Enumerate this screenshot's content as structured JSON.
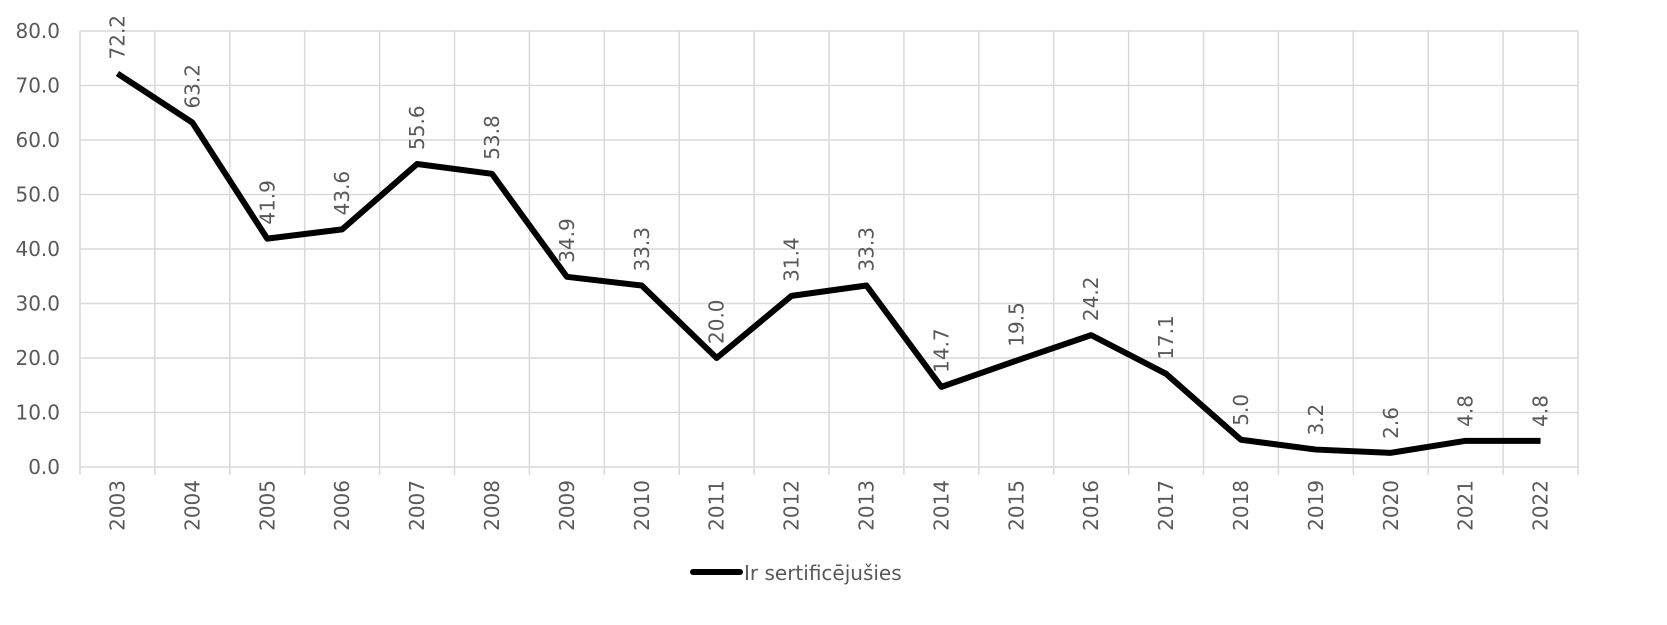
{
  "chart_data": {
    "type": "line",
    "categories": [
      "2003",
      "2004",
      "2005",
      "2006",
      "2007",
      "2008",
      "2009",
      "2010",
      "2011",
      "2012",
      "2013",
      "2014",
      "2015",
      "2016",
      "2017",
      "2018",
      "2019",
      "2020",
      "2021",
      "2022"
    ],
    "series": [
      {
        "name": "Ir sertificējušies",
        "color": "#000000",
        "values": [
          72.2,
          63.2,
          41.9,
          43.6,
          55.6,
          53.8,
          34.9,
          33.3,
          20.0,
          31.4,
          33.3,
          14.7,
          19.5,
          24.2,
          17.1,
          5.0,
          3.2,
          2.6,
          4.8,
          4.8
        ],
        "value_labels": [
          "72.2",
          "63.2",
          "41.9",
          "43.6",
          "55.6",
          "53.8",
          "34.9",
          "33.3",
          "20.0",
          "31.4",
          "33.3",
          "14.7",
          "19.5",
          "24.2",
          "17.1",
          "5.0",
          "3.2",
          "2.6",
          "4.8",
          "4.8"
        ]
      }
    ],
    "ylim": [
      0,
      80
    ],
    "yticks": [
      {
        "value": 0,
        "label": "0.0"
      },
      {
        "value": 10,
        "label": "10.0"
      },
      {
        "value": 20,
        "label": "20.0"
      },
      {
        "value": 30,
        "label": "30.0"
      },
      {
        "value": 40,
        "label": "40.0"
      },
      {
        "value": 50,
        "label": "50.0"
      },
      {
        "value": 60,
        "label": "60.0"
      },
      {
        "value": 70,
        "label": "70.0"
      },
      {
        "value": 80,
        "label": "80.0"
      }
    ],
    "grid": true,
    "legend": "bottom"
  }
}
